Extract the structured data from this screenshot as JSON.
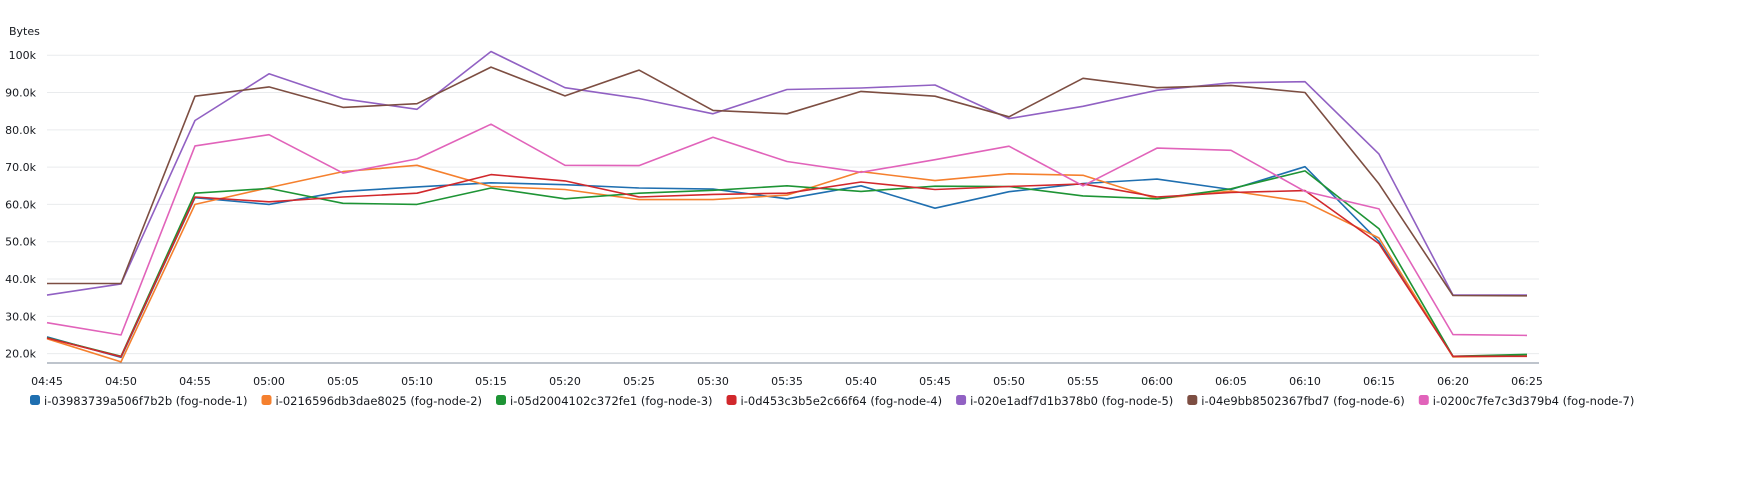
{
  "chart_data": {
    "type": "line",
    "ylabel": "Bytes",
    "ylim": [
      17500,
      103000
    ],
    "y_ticks": [
      20000,
      30000,
      40000,
      50000,
      60000,
      70000,
      80000,
      90000,
      100000
    ],
    "y_tick_labels": [
      "20.0k",
      "30.0k",
      "40.0k",
      "50.0k",
      "60.0k",
      "70.0k",
      "80.0k",
      "90.0k",
      "100k"
    ],
    "x": [
      "04:45",
      "04:50",
      "04:55",
      "05:00",
      "05:05",
      "05:10",
      "05:15",
      "05:20",
      "05:25",
      "05:30",
      "05:35",
      "05:40",
      "05:45",
      "05:50",
      "05:55",
      "06:00",
      "06:05",
      "06:10",
      "06:15",
      "06:20",
      "06:25"
    ],
    "grid": true,
    "legend_position": "bottom",
    "series": [
      {
        "name": "i-03983739a506f7b2b (fog-node-1)",
        "color": "#1f6fb0",
        "values": [
          24500,
          19000,
          61800,
          60000,
          63500,
          64700,
          65800,
          65300,
          64400,
          64100,
          61500,
          65000,
          59000,
          63400,
          65600,
          66800,
          64000,
          70100,
          50000,
          19300,
          19500
        ]
      },
      {
        "name": "i-0216596db3dae8025 (fog-node-2)",
        "color": "#f5802e",
        "values": [
          24000,
          17800,
          60000,
          64500,
          68800,
          70500,
          64800,
          64000,
          61300,
          61300,
          62500,
          68800,
          66400,
          68200,
          67800,
          61500,
          63600,
          60700,
          51000,
          19100,
          19400
        ]
      },
      {
        "name": "i-05d2004102c372fe1 (fog-node-3)",
        "color": "#1e9435",
        "values": [
          24300,
          19300,
          63000,
          64300,
          60300,
          60000,
          64400,
          61500,
          63000,
          63800,
          65000,
          63500,
          64900,
          64800,
          62300,
          61500,
          64200,
          69000,
          53500,
          19300,
          19800
        ]
      },
      {
        "name": "i-0d453c3b5e2c66f64 (fog-node-4)",
        "color": "#d1282c",
        "values": [
          24200,
          19200,
          62000,
          60700,
          62000,
          63000,
          68000,
          66300,
          62000,
          62700,
          63000,
          66000,
          64000,
          64800,
          65500,
          62000,
          63200,
          63700,
          49500,
          19300,
          19300
        ]
      },
      {
        "name": "i-020e1adf7d1b378b0 (fog-node-5)",
        "color": "#9161c3",
        "values": [
          35700,
          38700,
          82500,
          95000,
          88300,
          85500,
          101000,
          91300,
          88400,
          84300,
          90800,
          91200,
          92000,
          83000,
          86300,
          90600,
          92600,
          92900,
          73500,
          35700,
          35700
        ]
      },
      {
        "name": "i-04e9bb8502367fbd7 (fog-node-6)",
        "color": "#7d4e42",
        "values": [
          38800,
          38800,
          89000,
          91500,
          86000,
          87000,
          96800,
          89100,
          96000,
          85200,
          84300,
          90300,
          89000,
          83500,
          93800,
          91300,
          91900,
          90000,
          65500,
          35600,
          35500
        ]
      },
      {
        "name": "i-0200c7fe7c3d379b4 (fog-node-7)",
        "color": "#e163ba",
        "values": [
          28300,
          25000,
          75700,
          78700,
          68400,
          72200,
          81500,
          70500,
          70400,
          78000,
          71500,
          68600,
          72000,
          75600,
          65000,
          75100,
          74500,
          63500,
          58800,
          25100,
          24900
        ]
      }
    ]
  }
}
